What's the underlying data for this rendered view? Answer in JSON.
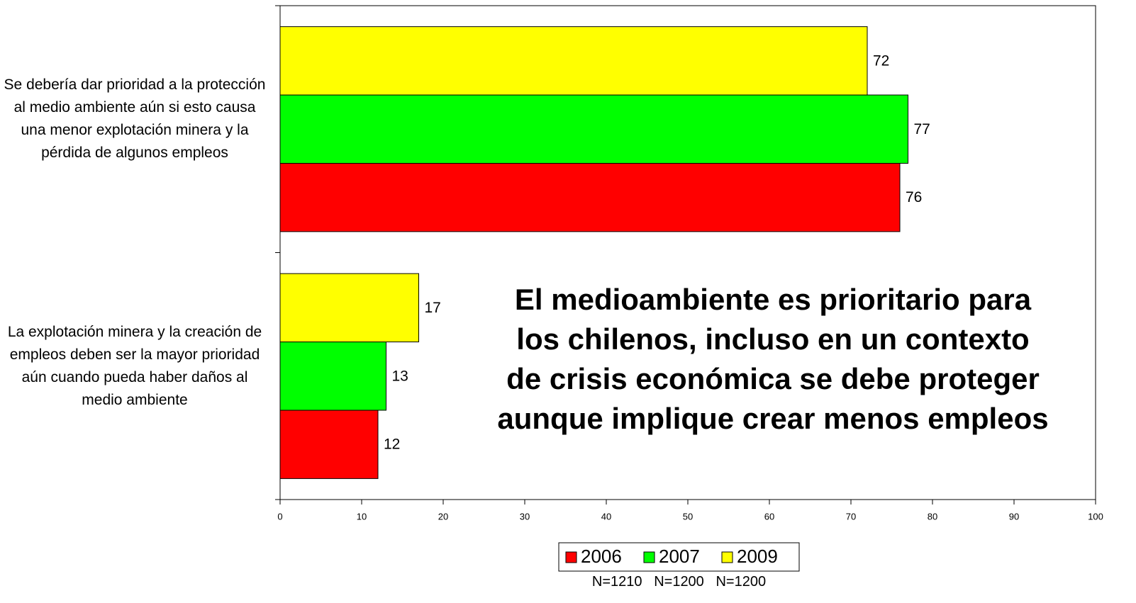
{
  "chart_data": {
    "type": "hbar",
    "categories": [
      "Se debería dar prioridad a la protección al medio ambiente aún si esto causa una menor explotación minera y la pérdida de algunos empleos",
      "La explotación minera y la creación de empleos deben ser la mayor prioridad aún cuando pueda haber daños al medio ambiente"
    ],
    "series": [
      {
        "name": "2006",
        "color": "#ff0000",
        "values": [
          76,
          12
        ]
      },
      {
        "name": "2007",
        "color": "#00ff00",
        "values": [
          77,
          13
        ]
      },
      {
        "name": "2009",
        "color": "#ffff00",
        "values": [
          72,
          17
        ]
      }
    ],
    "xlim": [
      0,
      100
    ],
    "xticks": [
      0,
      10,
      20,
      30,
      40,
      50,
      60,
      70,
      80,
      90,
      100
    ],
    "annotation": "El medioambiente es prioritario para los chilenos, incluso en un contexto de crisis económica se debe proteger aunque implique crear menos empleos",
    "legend_note": "N=1210   N=1200   N=1200",
    "legend": "bottom"
  }
}
